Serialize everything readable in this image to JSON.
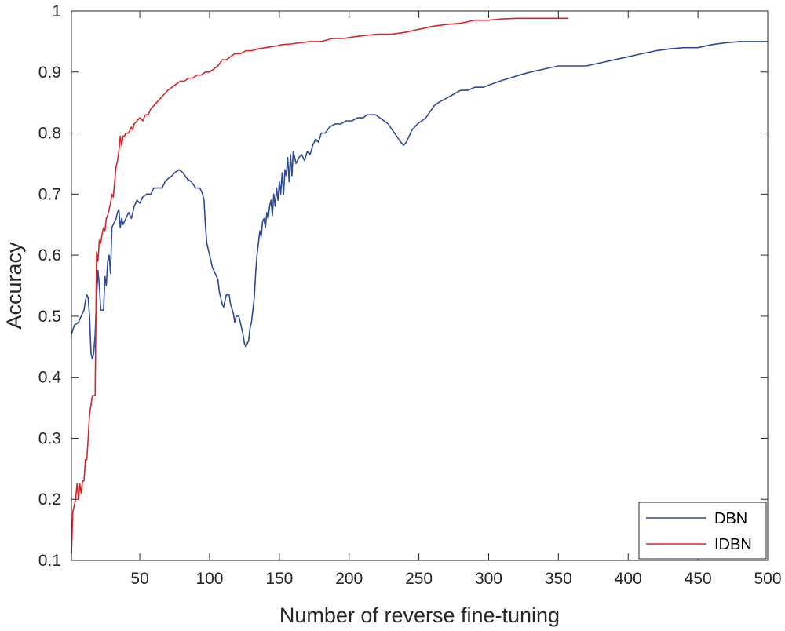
{
  "chart_data": {
    "type": "line",
    "xlabel": "Number of reverse fine-tuning",
    "ylabel": "Accuracy",
    "xlim": [
      1,
      500
    ],
    "ylim": [
      0.1,
      1
    ],
    "xticks": [
      50,
      100,
      150,
      200,
      250,
      300,
      350,
      400,
      450,
      500
    ],
    "yticks": [
      0.1,
      0.2,
      0.3,
      0.4,
      0.5,
      0.6,
      0.7,
      0.8,
      0.9,
      1
    ],
    "ytick_labels": [
      "0.1",
      "0.2",
      "0.3",
      "0.4",
      "0.5",
      "0.6",
      "0.7",
      "0.8",
      "0.9",
      "1"
    ],
    "grid": false,
    "legend_position": "bottom-right",
    "series": [
      {
        "name": "DBN",
        "color": "#2e4a9b",
        "points": [
          [
            1,
            0.47
          ],
          [
            3,
            0.485
          ],
          [
            6,
            0.49
          ],
          [
            8,
            0.5
          ],
          [
            10,
            0.51
          ],
          [
            11,
            0.525
          ],
          [
            12,
            0.535
          ],
          [
            13,
            0.53
          ],
          [
            14,
            0.5
          ],
          [
            15,
            0.44
          ],
          [
            16,
            0.43
          ],
          [
            17,
            0.44
          ],
          [
            18,
            0.47
          ],
          [
            19,
            0.53
          ],
          [
            20,
            0.575
          ],
          [
            21,
            0.55
          ],
          [
            22,
            0.51
          ],
          [
            24,
            0.51
          ],
          [
            25,
            0.565
          ],
          [
            26,
            0.55
          ],
          [
            27,
            0.59
          ],
          [
            28,
            0.6
          ],
          [
            29,
            0.57
          ],
          [
            30,
            0.645
          ],
          [
            31,
            0.65
          ],
          [
            33,
            0.66
          ],
          [
            34,
            0.67
          ],
          [
            35,
            0.675
          ],
          [
            36,
            0.645
          ],
          [
            37,
            0.66
          ],
          [
            38,
            0.65
          ],
          [
            40,
            0.66
          ],
          [
            42,
            0.67
          ],
          [
            44,
            0.66
          ],
          [
            46,
            0.68
          ],
          [
            48,
            0.69
          ],
          [
            50,
            0.685
          ],
          [
            52,
            0.695
          ],
          [
            55,
            0.7
          ],
          [
            58,
            0.7
          ],
          [
            60,
            0.71
          ],
          [
            63,
            0.71
          ],
          [
            66,
            0.71
          ],
          [
            68,
            0.72
          ],
          [
            70,
            0.725
          ],
          [
            73,
            0.73
          ],
          [
            75,
            0.735
          ],
          [
            78,
            0.74
          ],
          [
            81,
            0.735
          ],
          [
            84,
            0.725
          ],
          [
            87,
            0.72
          ],
          [
            90,
            0.71
          ],
          [
            93,
            0.71
          ],
          [
            95,
            0.7
          ],
          [
            96,
            0.69
          ],
          [
            97,
            0.65
          ],
          [
            98,
            0.62
          ],
          [
            100,
            0.6
          ],
          [
            102,
            0.58
          ],
          [
            104,
            0.57
          ],
          [
            106,
            0.56
          ],
          [
            107,
            0.54
          ],
          [
            109,
            0.52
          ],
          [
            110,
            0.515
          ],
          [
            112,
            0.535
          ],
          [
            114,
            0.535
          ],
          [
            115,
            0.52
          ],
          [
            117,
            0.505
          ],
          [
            118,
            0.49
          ],
          [
            119,
            0.5
          ],
          [
            121,
            0.5
          ],
          [
            122,
            0.49
          ],
          [
            124,
            0.47
          ],
          [
            125,
            0.455
          ],
          [
            126,
            0.45
          ],
          [
            127,
            0.455
          ],
          [
            128,
            0.46
          ],
          [
            129,
            0.48
          ],
          [
            130,
            0.49
          ],
          [
            132,
            0.53
          ],
          [
            133,
            0.57
          ],
          [
            134,
            0.6
          ],
          [
            135,
            0.62
          ],
          [
            136,
            0.64
          ],
          [
            137,
            0.63
          ],
          [
            138,
            0.655
          ],
          [
            139,
            0.66
          ],
          [
            140,
            0.645
          ],
          [
            141,
            0.67
          ],
          [
            142,
            0.66
          ],
          [
            143,
            0.68
          ],
          [
            144,
            0.69
          ],
          [
            145,
            0.665
          ],
          [
            146,
            0.7
          ],
          [
            147,
            0.68
          ],
          [
            148,
            0.71
          ],
          [
            149,
            0.69
          ],
          [
            150,
            0.72
          ],
          [
            151,
            0.7
          ],
          [
            152,
            0.735
          ],
          [
            153,
            0.7
          ],
          [
            154,
            0.74
          ],
          [
            155,
            0.73
          ],
          [
            156,
            0.76
          ],
          [
            157,
            0.72
          ],
          [
            158,
            0.765
          ],
          [
            159,
            0.73
          ],
          [
            160,
            0.77
          ],
          [
            162,
            0.75
          ],
          [
            164,
            0.76
          ],
          [
            166,
            0.765
          ],
          [
            168,
            0.755
          ],
          [
            170,
            0.77
          ],
          [
            172,
            0.765
          ],
          [
            174,
            0.78
          ],
          [
            176,
            0.79
          ],
          [
            178,
            0.785
          ],
          [
            180,
            0.8
          ],
          [
            183,
            0.8
          ],
          [
            186,
            0.81
          ],
          [
            190,
            0.815
          ],
          [
            194,
            0.815
          ],
          [
            198,
            0.82
          ],
          [
            202,
            0.82
          ],
          [
            206,
            0.825
          ],
          [
            210,
            0.825
          ],
          [
            213,
            0.83
          ],
          [
            216,
            0.83
          ],
          [
            219,
            0.83
          ],
          [
            222,
            0.825
          ],
          [
            225,
            0.82
          ],
          [
            228,
            0.815
          ],
          [
            231,
            0.805
          ],
          [
            234,
            0.795
          ],
          [
            237,
            0.785
          ],
          [
            239,
            0.78
          ],
          [
            241,
            0.785
          ],
          [
            243,
            0.795
          ],
          [
            245,
            0.805
          ],
          [
            247,
            0.81
          ],
          [
            249,
            0.815
          ],
          [
            252,
            0.82
          ],
          [
            255,
            0.825
          ],
          [
            258,
            0.835
          ],
          [
            261,
            0.845
          ],
          [
            264,
            0.85
          ],
          [
            268,
            0.855
          ],
          [
            272,
            0.86
          ],
          [
            276,
            0.865
          ],
          [
            280,
            0.87
          ],
          [
            285,
            0.87
          ],
          [
            290,
            0.875
          ],
          [
            296,
            0.875
          ],
          [
            302,
            0.88
          ],
          [
            308,
            0.885
          ],
          [
            315,
            0.89
          ],
          [
            322,
            0.895
          ],
          [
            330,
            0.9
          ],
          [
            340,
            0.905
          ],
          [
            350,
            0.91
          ],
          [
            360,
            0.91
          ],
          [
            370,
            0.91
          ],
          [
            380,
            0.915
          ],
          [
            390,
            0.92
          ],
          [
            400,
            0.925
          ],
          [
            410,
            0.93
          ],
          [
            420,
            0.935
          ],
          [
            430,
            0.938
          ],
          [
            440,
            0.94
          ],
          [
            450,
            0.94
          ],
          [
            460,
            0.945
          ],
          [
            470,
            0.948
          ],
          [
            480,
            0.95
          ],
          [
            490,
            0.95
          ],
          [
            500,
            0.95
          ]
        ]
      },
      {
        "name": "IDBN",
        "color": "#d7262b",
        "points": [
          [
            1,
            0.11
          ],
          [
            2,
            0.18
          ],
          [
            3,
            0.19
          ],
          [
            4,
            0.2
          ],
          [
            5,
            0.225
          ],
          [
            6,
            0.2
          ],
          [
            7,
            0.225
          ],
          [
            8,
            0.21
          ],
          [
            9,
            0.23
          ],
          [
            10,
            0.23
          ],
          [
            11,
            0.265
          ],
          [
            12,
            0.265
          ],
          [
            13,
            0.3
          ],
          [
            14,
            0.34
          ],
          [
            15,
            0.355
          ],
          [
            16,
            0.37
          ],
          [
            17,
            0.37
          ],
          [
            18,
            0.37
          ],
          [
            19,
            0.605
          ],
          [
            20,
            0.59
          ],
          [
            21,
            0.625
          ],
          [
            22,
            0.62
          ],
          [
            23,
            0.635
          ],
          [
            24,
            0.645
          ],
          [
            25,
            0.64
          ],
          [
            26,
            0.66
          ],
          [
            27,
            0.665
          ],
          [
            28,
            0.675
          ],
          [
            29,
            0.685
          ],
          [
            30,
            0.7
          ],
          [
            31,
            0.695
          ],
          [
            32,
            0.72
          ],
          [
            33,
            0.745
          ],
          [
            34,
            0.755
          ],
          [
            35,
            0.77
          ],
          [
            36,
            0.795
          ],
          [
            37,
            0.78
          ],
          [
            38,
            0.795
          ],
          [
            39,
            0.795
          ],
          [
            40,
            0.8
          ],
          [
            42,
            0.8
          ],
          [
            44,
            0.81
          ],
          [
            45,
            0.805
          ],
          [
            46,
            0.815
          ],
          [
            48,
            0.82
          ],
          [
            50,
            0.825
          ],
          [
            52,
            0.82
          ],
          [
            54,
            0.83
          ],
          [
            56,
            0.83
          ],
          [
            58,
            0.84
          ],
          [
            60,
            0.845
          ],
          [
            62,
            0.85
          ],
          [
            64,
            0.855
          ],
          [
            66,
            0.86
          ],
          [
            68,
            0.865
          ],
          [
            70,
            0.87
          ],
          [
            73,
            0.875
          ],
          [
            76,
            0.88
          ],
          [
            79,
            0.885
          ],
          [
            82,
            0.885
          ],
          [
            85,
            0.89
          ],
          [
            88,
            0.89
          ],
          [
            91,
            0.895
          ],
          [
            94,
            0.895
          ],
          [
            97,
            0.9
          ],
          [
            100,
            0.9
          ],
          [
            103,
            0.905
          ],
          [
            106,
            0.91
          ],
          [
            109,
            0.92
          ],
          [
            112,
            0.92
          ],
          [
            115,
            0.925
          ],
          [
            118,
            0.93
          ],
          [
            122,
            0.93
          ],
          [
            126,
            0.935
          ],
          [
            130,
            0.935
          ],
          [
            135,
            0.938
          ],
          [
            140,
            0.94
          ],
          [
            146,
            0.942
          ],
          [
            152,
            0.945
          ],
          [
            158,
            0.946
          ],
          [
            165,
            0.948
          ],
          [
            172,
            0.95
          ],
          [
            180,
            0.95
          ],
          [
            188,
            0.955
          ],
          [
            196,
            0.955
          ],
          [
            204,
            0.958
          ],
          [
            212,
            0.96
          ],
          [
            220,
            0.962
          ],
          [
            230,
            0.962
          ],
          [
            240,
            0.965
          ],
          [
            250,
            0.97
          ],
          [
            260,
            0.975
          ],
          [
            270,
            0.978
          ],
          [
            280,
            0.98
          ],
          [
            290,
            0.985
          ],
          [
            300,
            0.985
          ],
          [
            310,
            0.987
          ],
          [
            320,
            0.988
          ],
          [
            330,
            0.988
          ],
          [
            340,
            0.988
          ],
          [
            350,
            0.988
          ],
          [
            357,
            0.988
          ]
        ]
      }
    ]
  }
}
